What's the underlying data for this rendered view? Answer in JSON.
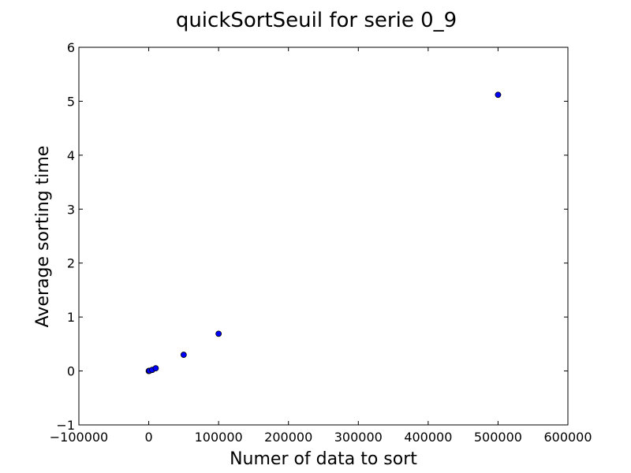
{
  "chart_data": {
    "type": "scatter",
    "title": "quickSortSeuil for serie 0_9",
    "xlabel": "Numer of data to sort",
    "ylabel": "Average sorting time",
    "xlim": [
      -100000,
      600000
    ],
    "ylim": [
      -1,
      6
    ],
    "xticks": [
      -100000,
      0,
      100000,
      200000,
      300000,
      400000,
      500000,
      600000
    ],
    "xtick_labels": [
      "−100000",
      "0",
      "100000",
      "200000",
      "300000",
      "400000",
      "500000",
      "600000"
    ],
    "yticks": [
      -1,
      0,
      1,
      2,
      3,
      4,
      5,
      6
    ],
    "ytick_labels": [
      "−1",
      "0",
      "1",
      "2",
      "3",
      "4",
      "5",
      "6"
    ],
    "grid": false,
    "marker_color": "#0000ff",
    "points": [
      {
        "x": 0,
        "y": 0.0
      },
      {
        "x": 1000,
        "y": 0.003
      },
      {
        "x": 5000,
        "y": 0.02
      },
      {
        "x": 10000,
        "y": 0.05
      },
      {
        "x": 50000,
        "y": 0.3
      },
      {
        "x": 100000,
        "y": 0.69
      },
      {
        "x": 500000,
        "y": 5.12
      }
    ]
  }
}
